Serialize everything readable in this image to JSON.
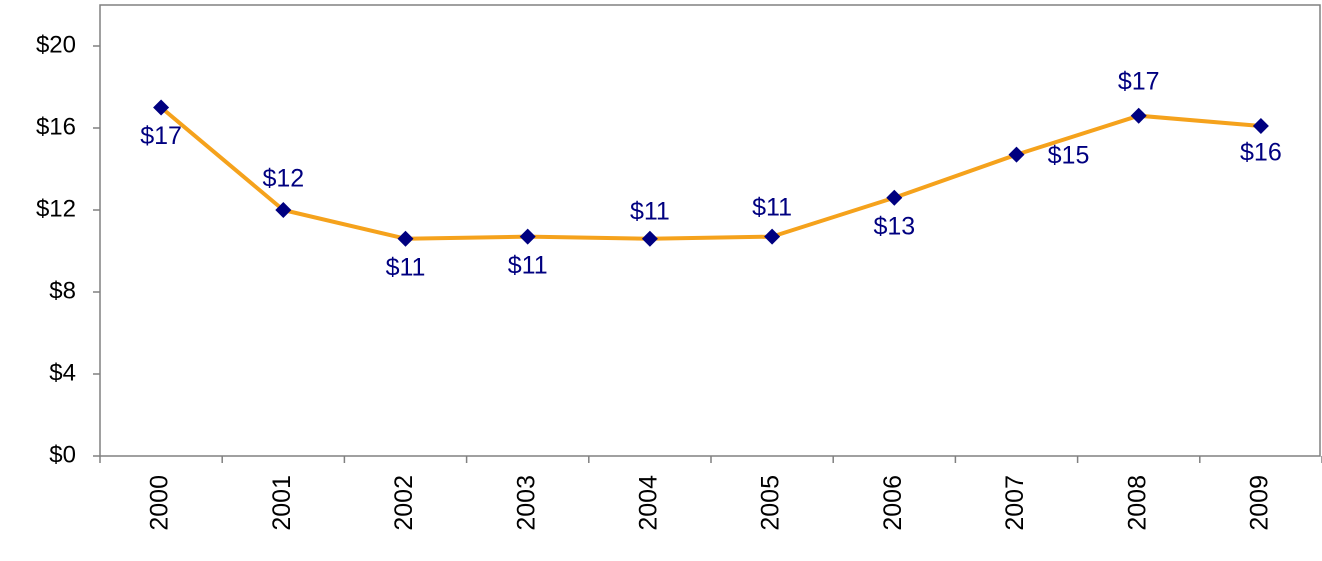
{
  "chart_data": {
    "type": "line",
    "categories": [
      "2000",
      "2001",
      "2002",
      "2003",
      "2004",
      "2005",
      "2006",
      "2007",
      "2008",
      "2009"
    ],
    "series": [
      {
        "color": "#f5a21c",
        "marker_color": "#000080",
        "values": [
          17,
          12,
          10.6,
          10.7,
          10.6,
          10.7,
          12.6,
          14.7,
          16.6,
          16.1
        ],
        "value_labels": [
          "$17",
          "$12",
          "$11",
          "$11",
          "$11",
          "$11",
          "$13",
          "$15",
          "$17",
          "$16"
        ]
      }
    ],
    "ylim": [
      0,
      22
    ],
    "yticks": [
      {
        "value": 0,
        "label": "$0"
      },
      {
        "value": 4,
        "label": "$4"
      },
      {
        "value": 8,
        "label": "$8"
      },
      {
        "value": 12,
        "label": "$12"
      },
      {
        "value": 16,
        "label": "$16"
      },
      {
        "value": 20,
        "label": "$20"
      }
    ],
    "grid": false
  }
}
